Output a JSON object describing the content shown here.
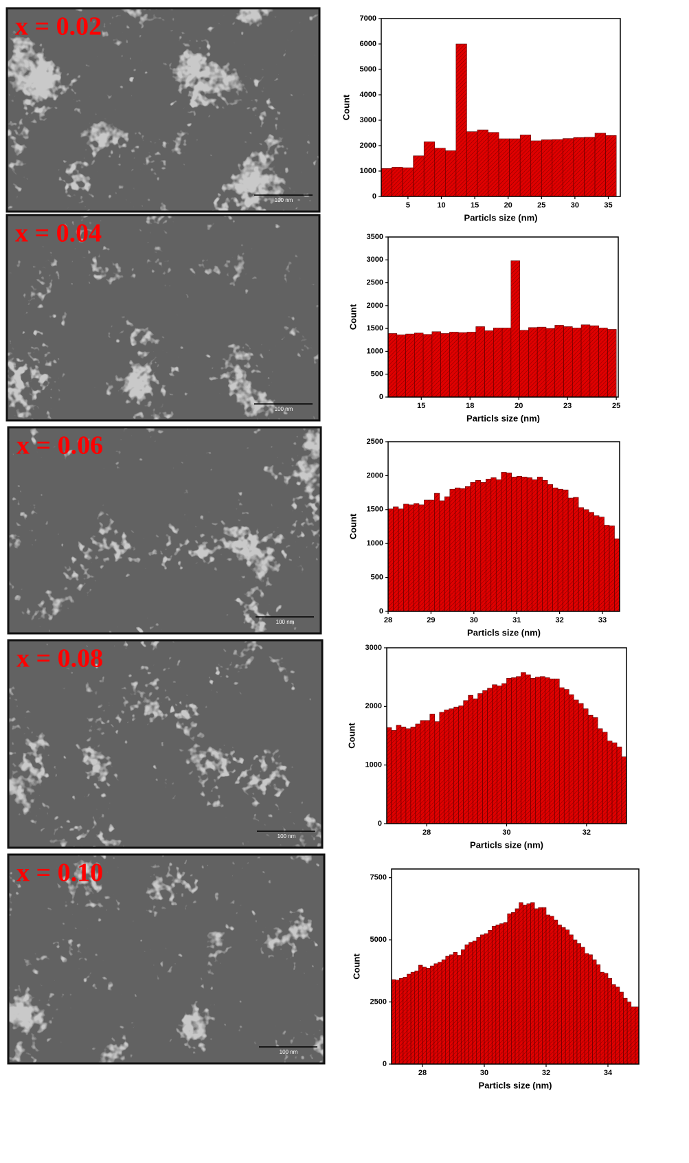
{
  "images": [
    {
      "label": "x = 0.02",
      "scale_bar": "100 nm"
    },
    {
      "label": "x = 0.04",
      "scale_bar": "100 nm"
    },
    {
      "label": "x = 0.06",
      "scale_bar": "100 nm"
    },
    {
      "label": "x = 0.08",
      "scale_bar": "100 nm"
    },
    {
      "label": "x = 0.10",
      "scale_bar": "100 nm"
    }
  ],
  "chart_data": [
    {
      "type": "histogram",
      "xlabel": "Particls size (nm)",
      "ylabel": "Count",
      "color": "#e00000",
      "bins": [
        1,
        2.6,
        4.2,
        5.8,
        7.4,
        9,
        10.6,
        12.2,
        13.8,
        15.4,
        17,
        18.6,
        20.2,
        21.8,
        23.4,
        25,
        26.6,
        28.2,
        29.8,
        31.4,
        33,
        34.6,
        36.2
      ],
      "values": [
        1100,
        1150,
        1130,
        1600,
        2150,
        1900,
        1800,
        6000,
        2550,
        2620,
        2520,
        2270,
        2270,
        2420,
        2190,
        2230,
        2240,
        2280,
        2320,
        2330,
        2490,
        2400
      ],
      "xlim": [
        1,
        36.8
      ],
      "xticks": [
        5,
        10,
        15,
        20,
        25,
        30,
        35
      ],
      "ylim": [
        0,
        7000
      ],
      "yticks": [
        0,
        1000,
        2000,
        3000,
        4000,
        5000,
        6000,
        7000
      ]
    },
    {
      "type": "histogram",
      "xlabel": "Particls size (nm)",
      "ylabel": "Count",
      "color": "#e00000",
      "bins": [
        13.3,
        13.75,
        14.2,
        14.65,
        15.1,
        15.55,
        16,
        16.45,
        16.9,
        17.35,
        17.8,
        18.25,
        18.7,
        19.15,
        19.6,
        20.05,
        20.5,
        20.95,
        21.4,
        21.85,
        22.3,
        22.75,
        23.2,
        23.65,
        24.1,
        24.55,
        25
      ],
      "values": [
        1390,
        1360,
        1380,
        1400,
        1370,
        1430,
        1390,
        1420,
        1410,
        1420,
        1540,
        1450,
        1510,
        1510,
        2980,
        1460,
        1520,
        1530,
        1500,
        1570,
        1540,
        1510,
        1580,
        1560,
        1510,
        1480
      ],
      "xlim": [
        13.3,
        25.1
      ],
      "xticks": [
        15,
        {
          "value": 17.5,
          "label": "18"
        },
        20,
        {
          "value": 22.5,
          "label": "23"
        },
        25
      ],
      "ylim": [
        0,
        3500
      ],
      "yticks": [
        0,
        500,
        1000,
        1500,
        2000,
        2500,
        3000,
        3500
      ]
    },
    {
      "type": "histogram",
      "xlabel": "Particls size (nm)",
      "ylabel": "Count",
      "color": "#e00000",
      "bins": [
        28,
        28.12,
        28.24,
        28.36,
        28.48,
        28.6,
        28.72,
        28.84,
        28.96,
        29.08,
        29.2,
        29.32,
        29.44,
        29.56,
        29.68,
        29.8,
        29.92,
        30.04,
        30.16,
        30.28,
        30.4,
        30.52,
        30.64,
        30.76,
        30.88,
        31,
        31.12,
        31.24,
        31.36,
        31.48,
        31.6,
        31.72,
        31.84,
        31.96,
        32.08,
        32.2,
        32.32,
        32.44,
        32.56,
        32.68,
        32.8,
        32.92,
        33.04,
        33.16,
        33.28,
        33.4
      ],
      "values": [
        1510,
        1540,
        1510,
        1580,
        1570,
        1590,
        1570,
        1640,
        1640,
        1740,
        1630,
        1690,
        1800,
        1820,
        1810,
        1840,
        1900,
        1930,
        1900,
        1950,
        1970,
        1940,
        2050,
        2040,
        1980,
        1990,
        1980,
        1970,
        1940,
        1980,
        1930,
        1870,
        1820,
        1800,
        1790,
        1670,
        1680,
        1530,
        1500,
        1460,
        1410,
        1390,
        1270,
        1260,
        1070
      ],
      "xlim": [
        28,
        33.4
      ],
      "xticks": [
        28,
        29,
        30,
        31,
        32,
        33
      ],
      "ylim": [
        0,
        2500
      ],
      "yticks": [
        0,
        500,
        1000,
        1500,
        2000,
        2500
      ]
    },
    {
      "type": "histogram",
      "xlabel": "Particls size (nm)",
      "ylabel": "Count",
      "color": "#e00000",
      "bins": [
        27,
        27.12,
        27.24,
        27.36,
        27.48,
        27.6,
        27.72,
        27.84,
        27.96,
        28.08,
        28.2,
        28.32,
        28.44,
        28.56,
        28.68,
        28.8,
        28.92,
        29.04,
        29.16,
        29.28,
        29.4,
        29.52,
        29.64,
        29.76,
        29.88,
        30,
        30.12,
        30.24,
        30.36,
        30.48,
        30.6,
        30.72,
        30.84,
        30.96,
        31.08,
        31.2,
        31.32,
        31.44,
        31.56,
        31.68,
        31.8,
        31.92,
        32.04,
        32.16,
        32.28,
        32.4,
        32.52,
        32.64,
        32.76,
        32.88,
        33
      ],
      "values": [
        1640,
        1590,
        1680,
        1650,
        1620,
        1650,
        1700,
        1760,
        1760,
        1870,
        1740,
        1900,
        1940,
        1960,
        1990,
        2010,
        2100,
        2190,
        2130,
        2220,
        2270,
        2310,
        2370,
        2350,
        2390,
        2480,
        2490,
        2510,
        2580,
        2540,
        2480,
        2500,
        2510,
        2490,
        2470,
        2470,
        2320,
        2290,
        2200,
        2110,
        2050,
        1960,
        1850,
        1810,
        1620,
        1560,
        1410,
        1380,
        1310,
        1140
      ],
      "xlim": [
        27,
        33
      ],
      "xticks": [
        28,
        30,
        32
      ],
      "ylim": [
        0,
        3000
      ],
      "yticks": [
        0,
        1000,
        2000,
        3000
      ]
    },
    {
      "type": "histogram",
      "xlabel": "Particls size (nm)",
      "ylabel": "Count",
      "color": "#e00000",
      "bins": [
        27,
        27.125,
        27.25,
        27.375,
        27.5,
        27.625,
        27.75,
        27.875,
        28,
        28.125,
        28.25,
        28.375,
        28.5,
        28.625,
        28.75,
        28.875,
        29,
        29.125,
        29.25,
        29.375,
        29.5,
        29.625,
        29.75,
        29.875,
        30,
        30.125,
        30.25,
        30.375,
        30.5,
        30.625,
        30.75,
        30.875,
        31,
        31.125,
        31.25,
        31.375,
        31.5,
        31.625,
        31.75,
        31.875,
        32,
        32.125,
        32.25,
        32.375,
        32.5,
        32.625,
        32.75,
        32.875,
        33,
        33.125,
        33.25,
        33.375,
        33.5,
        33.625,
        33.75,
        33.875,
        34,
        34.125,
        34.25,
        34.375,
        34.5,
        34.625,
        34.75,
        34.875,
        35
      ],
      "values": [
        3400,
        3380,
        3450,
        3500,
        3620,
        3700,
        3750,
        3980,
        3900,
        3860,
        3950,
        4040,
        4100,
        4200,
        4340,
        4400,
        4500,
        4380,
        4600,
        4800,
        4900,
        4950,
        5100,
        5200,
        5250,
        5380,
        5550,
        5600,
        5650,
        5700,
        6050,
        6100,
        6250,
        6500,
        6400,
        6450,
        6500,
        6250,
        6300,
        6300,
        6000,
        5950,
        5800,
        5600,
        5500,
        5400,
        5200,
        5000,
        4850,
        4700,
        4450,
        4400,
        4200,
        4000,
        3700,
        3650,
        3450,
        3200,
        3100,
        2900,
        2650,
        2500,
        2300,
        2300
      ],
      "xlim": [
        27,
        35
      ],
      "xticks": [
        28,
        30,
        32,
        34
      ],
      "ylim": [
        0,
        7850
      ],
      "yticks": [
        0,
        2500,
        5000,
        7500
      ]
    }
  ]
}
